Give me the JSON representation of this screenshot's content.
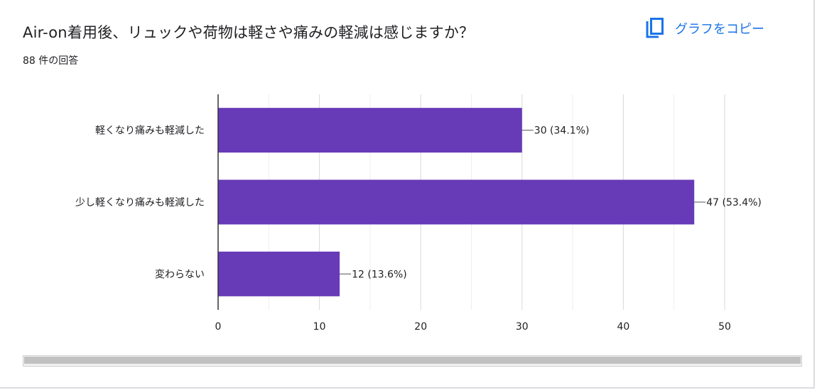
{
  "header": {
    "title": "Air-on着用後、リュックや荷物は軽さや痛みの軽減は感じますか？",
    "response_count": "88 件の回答",
    "copy_label": "グラフをコピー",
    "copy_icon": "copy-icon",
    "accent_color": "#1a73e8"
  },
  "chart_data": {
    "type": "bar",
    "orientation": "horizontal",
    "categories": [
      "軽くなり痛みも軽減した",
      "少し軽くなり痛みも軽減した",
      "変わらない"
    ],
    "values": [
      30,
      47,
      12
    ],
    "data_labels": [
      "30 (34.1%)",
      "47 (53.4%)",
      "12 (13.6%)"
    ],
    "xlim": [
      0,
      50
    ],
    "xticks": [
      0,
      10,
      20,
      30,
      40,
      50
    ],
    "grid": true,
    "bar_color": "#673ab7"
  }
}
